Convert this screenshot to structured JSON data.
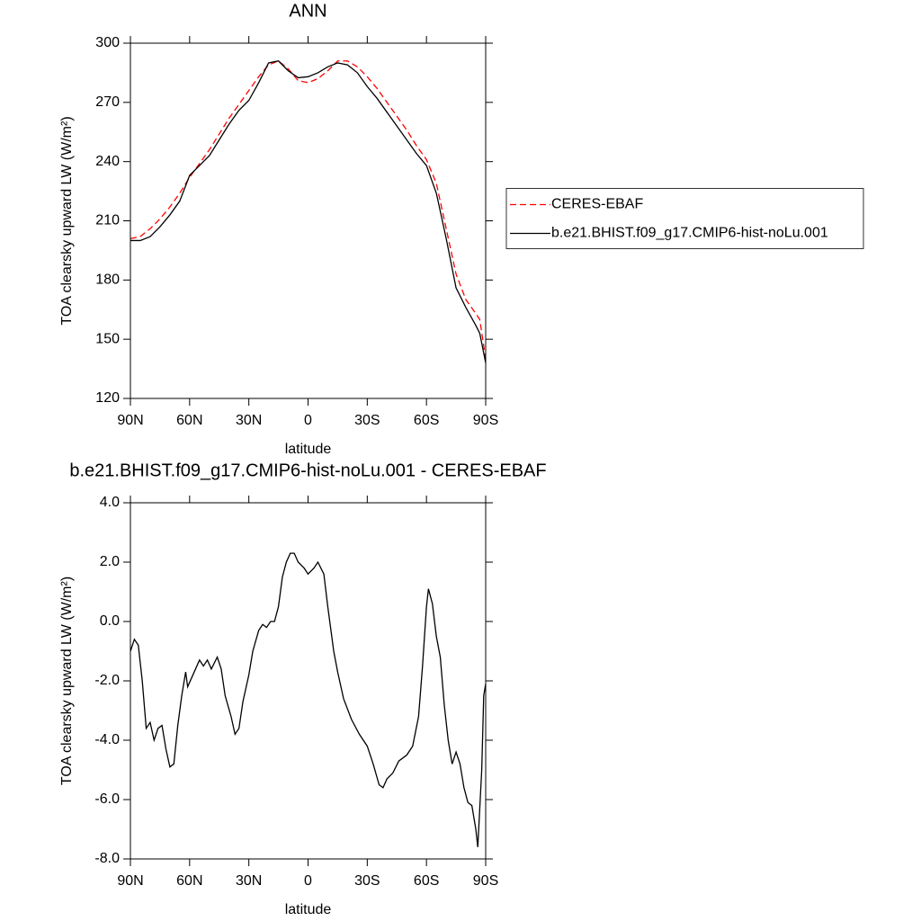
{
  "chart_data": [
    {
      "type": "line",
      "title": "ANN",
      "x_label": "latitude",
      "y_label": "TOA clearsky upward LW (W/m²)",
      "x": [
        90,
        85,
        80,
        75,
        70,
        65,
        60,
        55,
        50,
        45,
        40,
        35,
        30,
        25,
        20,
        15,
        10,
        5,
        0,
        -5,
        -10,
        -15,
        -20,
        -25,
        -30,
        -35,
        -40,
        -45,
        -50,
        -55,
        -60,
        -65,
        -70,
        -75,
        -80,
        -85,
        -87,
        -90
      ],
      "series": [
        {
          "name": "CERES-EBAF",
          "color": "#ff0000",
          "line_style": "dashed",
          "values": [
            201,
            202,
            206,
            211,
            217,
            224,
            232,
            239,
            246,
            254,
            262,
            269,
            276,
            283,
            289,
            291,
            287,
            281,
            280,
            282,
            286,
            291,
            291,
            288,
            283,
            277,
            270,
            263,
            256,
            248,
            241,
            229,
            206,
            183,
            170,
            163,
            160,
            140
          ]
        },
        {
          "name": "b.e21.BHIST.f09_g17.CMIP6-hist-noLu.001",
          "color": "#000000",
          "line_style": "solid",
          "values": [
            200,
            200,
            202,
            207,
            213,
            220,
            233,
            238,
            243,
            251,
            259,
            266,
            271,
            280,
            290,
            291,
            286,
            282.5,
            283,
            285,
            288,
            290,
            289,
            285,
            278,
            272,
            265,
            258,
            251,
            244,
            238,
            224,
            201,
            176,
            166,
            157,
            153,
            138
          ]
        }
      ],
      "xlim": [
        90,
        -90
      ],
      "xticks": [
        {
          "value": 90,
          "label": "90N"
        },
        {
          "value": 60,
          "label": "60N"
        },
        {
          "value": 30,
          "label": "30N"
        },
        0,
        {
          "value": -30,
          "label": "30S"
        },
        {
          "value": -60,
          "label": "60S"
        },
        {
          "value": -90,
          "label": "90S"
        }
      ],
      "ylim": [
        120,
        300
      ],
      "yticks": [
        120,
        150,
        180,
        210,
        240,
        270,
        300
      ],
      "legend": "right"
    },
    {
      "type": "line",
      "title": "b.e21.BHIST.f09_g17.CMIP6-hist-noLu.001 - CERES-EBAF",
      "x_label": "latitude",
      "y_label": "TOA clearsky upward LW (W/m²)",
      "x": [
        90,
        88,
        86,
        84,
        82,
        80,
        78,
        76,
        74,
        72,
        70,
        68,
        66,
        64,
        62,
        61,
        59,
        57,
        55,
        53,
        51,
        49,
        46,
        44,
        42,
        39,
        37,
        35,
        33,
        30,
        28,
        25,
        23,
        21,
        19,
        17,
        15,
        13,
        11,
        9,
        7,
        5,
        2,
        0,
        -3,
        -5,
        -8,
        -10,
        -13,
        -15,
        -18,
        -22,
        -26,
        -30,
        -33,
        -36,
        -38,
        -40,
        -43,
        -46,
        -50,
        -53,
        -56,
        -58,
        -60,
        -61,
        -63,
        -65,
        -67,
        -69,
        -71,
        -73,
        -75,
        -77,
        -79,
        -81,
        -83,
        -85,
        -86,
        -88,
        -89,
        -90
      ],
      "values": [
        -1.0,
        -0.6,
        -0.8,
        -2.0,
        -3.6,
        -3.4,
        -4.0,
        -3.6,
        -3.5,
        -4.3,
        -4.9,
        -4.8,
        -3.5,
        -2.5,
        -1.7,
        -2.2,
        -1.9,
        -1.6,
        -1.3,
        -1.5,
        -1.3,
        -1.6,
        -1.2,
        -1.6,
        -2.5,
        -3.2,
        -3.8,
        -3.6,
        -2.7,
        -1.8,
        -1.0,
        -0.3,
        -0.1,
        -0.2,
        0.0,
        0.0,
        0.5,
        1.5,
        2.0,
        2.3,
        2.3,
        2.0,
        1.8,
        1.6,
        1.8,
        2.0,
        1.6,
        0.5,
        -1.0,
        -1.7,
        -2.6,
        -3.3,
        -3.8,
        -4.2,
        -4.8,
        -5.5,
        -5.6,
        -5.3,
        -5.1,
        -4.7,
        -4.5,
        -4.2,
        -3.2,
        -1.5,
        0.5,
        1.1,
        0.6,
        -0.5,
        -1.2,
        -2.8,
        -4.0,
        -4.8,
        -4.4,
        -4.8,
        -5.6,
        -6.1,
        -6.2,
        -7.0,
        -7.6,
        -5.0,
        -2.5,
        -2.1
      ],
      "color": "#000000",
      "xlim": [
        90,
        -90
      ],
      "xticks": [
        {
          "value": 90,
          "label": "90N"
        },
        {
          "value": 60,
          "label": "60N"
        },
        {
          "value": 30,
          "label": "30N"
        },
        0,
        {
          "value": -30,
          "label": "30S"
        },
        {
          "value": -60,
          "label": "60S"
        },
        {
          "value": -90,
          "label": "90S"
        }
      ],
      "ylim": [
        -8,
        4
      ],
      "yticks": [
        {
          "value": -8,
          "label": "-8.0"
        },
        {
          "value": -6,
          "label": "-6.0"
        },
        {
          "value": -4,
          "label": "-4.0"
        },
        {
          "value": -2,
          "label": "-2.0"
        },
        {
          "value": 0,
          "label": "0.0"
        },
        {
          "value": 2,
          "label": "2.0"
        },
        {
          "value": 4,
          "label": "4.0"
        }
      ]
    }
  ]
}
